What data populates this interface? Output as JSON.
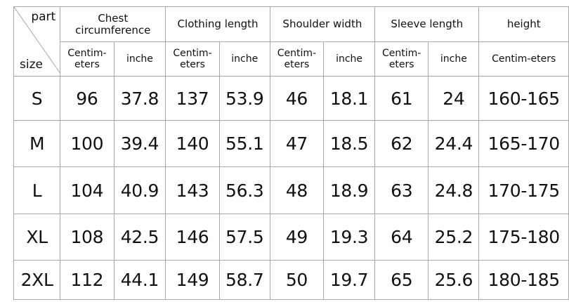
{
  "corner": {
    "part_label": "part",
    "size_label": "size"
  },
  "groups": [
    {
      "label": "Chest circumference",
      "units": [
        "Centim-eters",
        "inche"
      ]
    },
    {
      "label": "Clothing length",
      "units": [
        "Centim-eters",
        "inche"
      ]
    },
    {
      "label": "Shoulder width",
      "units": [
        "Centim-eters",
        "inche"
      ]
    },
    {
      "label": "Sleeve length",
      "units": [
        "Centim-eters",
        "inche"
      ]
    },
    {
      "label": "height",
      "units": [
        "Centim-eters"
      ]
    }
  ],
  "rows": [
    {
      "size": "S",
      "values": [
        "96",
        "37.8",
        "137",
        "53.9",
        "46",
        "18.1",
        "61",
        "24",
        "160-165"
      ]
    },
    {
      "size": "M",
      "values": [
        "100",
        "39.4",
        "140",
        "55.1",
        "47",
        "18.5",
        "62",
        "24.4",
        "165-170"
      ]
    },
    {
      "size": "L",
      "values": [
        "104",
        "40.9",
        "143",
        "56.3",
        "48",
        "18.9",
        "63",
        "24.8",
        "170-175"
      ]
    },
    {
      "size": "XL",
      "values": [
        "108",
        "42.5",
        "146",
        "57.5",
        "49",
        "19.3",
        "64",
        "25.2",
        "175-180"
      ]
    },
    {
      "size": "2XL",
      "values": [
        "112",
        "44.1",
        "149",
        "58.7",
        "50",
        "19.7",
        "65",
        "25.6",
        "180-185"
      ]
    }
  ]
}
